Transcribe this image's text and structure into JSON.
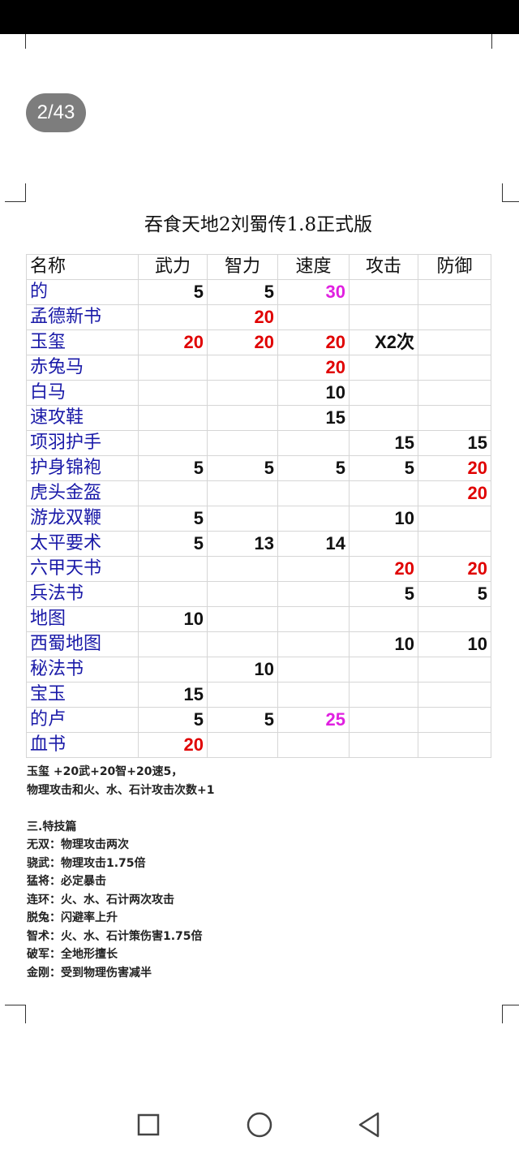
{
  "page_indicator": "2/43",
  "doc_title": "吞食天地2刘蜀传1.8正式版",
  "colors": {
    "name": "#1a1aa8",
    "red": "#e00000",
    "magenta": "#e020e0",
    "black": "#111111"
  },
  "table": {
    "headers": [
      "名称",
      "武力",
      "智力",
      "速度",
      "攻击",
      "防御"
    ],
    "rows": [
      {
        "name": "的",
        "cells": [
          [
            "5",
            "black"
          ],
          [
            "5",
            "black"
          ],
          [
            "30",
            "magenta"
          ],
          [
            "",
            ""
          ],
          [
            "",
            ""
          ]
        ]
      },
      {
        "name": "孟德新书",
        "cells": [
          [
            "",
            ""
          ],
          [
            "20",
            "red"
          ],
          [
            "",
            ""
          ],
          [
            "",
            ""
          ],
          [
            "",
            ""
          ]
        ]
      },
      {
        "name": "玉玺",
        "cells": [
          [
            "20",
            "red"
          ],
          [
            "20",
            "red"
          ],
          [
            "20",
            "red"
          ],
          [
            "X2次",
            "black"
          ],
          [
            "",
            ""
          ]
        ]
      },
      {
        "name": "赤兔马",
        "cells": [
          [
            "",
            ""
          ],
          [
            "",
            ""
          ],
          [
            "20",
            "red"
          ],
          [
            "",
            ""
          ],
          [
            "",
            ""
          ]
        ]
      },
      {
        "name": "白马",
        "cells": [
          [
            "",
            ""
          ],
          [
            "",
            ""
          ],
          [
            "10",
            "black"
          ],
          [
            "",
            ""
          ],
          [
            "",
            ""
          ]
        ]
      },
      {
        "name": "速攻鞋",
        "cells": [
          [
            "",
            ""
          ],
          [
            "",
            ""
          ],
          [
            "15",
            "black"
          ],
          [
            "",
            ""
          ],
          [
            "",
            ""
          ]
        ]
      },
      {
        "name": "项羽护手",
        "cells": [
          [
            "",
            ""
          ],
          [
            "",
            ""
          ],
          [
            "",
            ""
          ],
          [
            "15",
            "black"
          ],
          [
            "15",
            "black"
          ]
        ]
      },
      {
        "name": "护身锦袍",
        "cells": [
          [
            "5",
            "black"
          ],
          [
            "5",
            "black"
          ],
          [
            "5",
            "black"
          ],
          [
            "5",
            "black"
          ],
          [
            "20",
            "red"
          ]
        ]
      },
      {
        "name": "虎头金盔",
        "cells": [
          [
            "",
            ""
          ],
          [
            "",
            ""
          ],
          [
            "",
            ""
          ],
          [
            "",
            ""
          ],
          [
            "20",
            "red"
          ]
        ]
      },
      {
        "name": "游龙双鞭",
        "cells": [
          [
            "5",
            "black"
          ],
          [
            "",
            ""
          ],
          [
            "",
            ""
          ],
          [
            "10",
            "black"
          ],
          [
            "",
            ""
          ]
        ]
      },
      {
        "name": "太平要术",
        "cells": [
          [
            "5",
            "black"
          ],
          [
            "13",
            "black"
          ],
          [
            "14",
            "black"
          ],
          [
            "",
            ""
          ],
          [
            "",
            ""
          ]
        ]
      },
      {
        "name": "六甲天书",
        "cells": [
          [
            "",
            ""
          ],
          [
            "",
            ""
          ],
          [
            "",
            ""
          ],
          [
            "20",
            "red"
          ],
          [
            "20",
            "red"
          ]
        ]
      },
      {
        "name": "兵法书",
        "cells": [
          [
            "",
            ""
          ],
          [
            "",
            ""
          ],
          [
            "",
            ""
          ],
          [
            "5",
            "black"
          ],
          [
            "5",
            "black"
          ]
        ]
      },
      {
        "name": "地图",
        "cells": [
          [
            "10",
            "black"
          ],
          [
            "",
            ""
          ],
          [
            "",
            ""
          ],
          [
            "",
            ""
          ],
          [
            "",
            ""
          ]
        ]
      },
      {
        "name": "西蜀地图",
        "cells": [
          [
            "",
            ""
          ],
          [
            "",
            ""
          ],
          [
            "",
            ""
          ],
          [
            "10",
            "black"
          ],
          [
            "10",
            "black"
          ]
        ]
      },
      {
        "name": "秘法书",
        "cells": [
          [
            "",
            ""
          ],
          [
            "10",
            "black"
          ],
          [
            "",
            ""
          ],
          [
            "",
            ""
          ],
          [
            "",
            ""
          ]
        ]
      },
      {
        "name": "宝玉",
        "cells": [
          [
            "15",
            "black"
          ],
          [
            "",
            ""
          ],
          [
            "",
            ""
          ],
          [
            "",
            ""
          ],
          [
            "",
            ""
          ]
        ]
      },
      {
        "name": "的卢",
        "cells": [
          [
            "5",
            "black"
          ],
          [
            "5",
            "black"
          ],
          [
            "25",
            "magenta"
          ],
          [
            "",
            ""
          ],
          [
            "",
            ""
          ]
        ]
      },
      {
        "name": "血书",
        "cells": [
          [
            "20",
            "red"
          ],
          [
            "",
            ""
          ],
          [
            "",
            ""
          ],
          [
            "",
            ""
          ],
          [
            "",
            ""
          ]
        ]
      }
    ]
  },
  "notes": [
    "玉玺  +20武+20智+20速5，",
    "物理攻击和火、水、石计攻击次数+1",
    "",
    "三.特技篇",
    "无双：物理攻击两次",
    "骁武：物理攻击1.75倍",
    "猛将：必定暴击",
    "连环：火、水、石计两次攻击",
    "脱兔：闪避率上升",
    "智术：火、水、石计策伤害1.75倍",
    "破军：全地形擅长",
    "金刚：受到物理伤害减半"
  ],
  "nav": {
    "recent": "square-icon",
    "home": "circle-icon",
    "back": "triangle-back-icon"
  }
}
